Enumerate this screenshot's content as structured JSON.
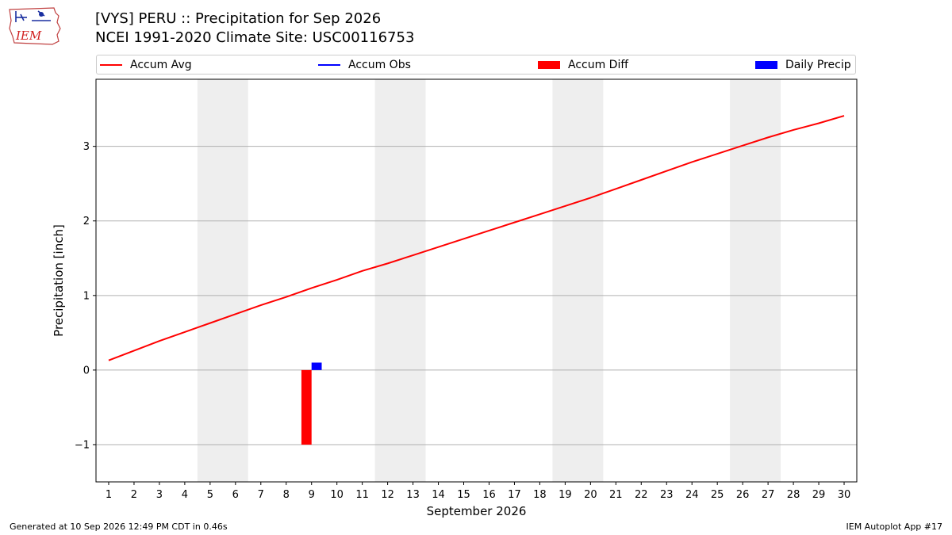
{
  "header": {
    "title_line1": "[VYS] PERU :: Precipitation for Sep 2026",
    "title_line2": "NCEI 1991-2020 Climate Site: USC00116753",
    "logo_text": "IEM"
  },
  "legend": {
    "placement": "top",
    "items": [
      {
        "label": "Accum Avg",
        "kind": "line",
        "color": "#ff0000"
      },
      {
        "label": "Accum Obs",
        "kind": "line",
        "color": "#0000ff"
      },
      {
        "label": "Accum Diff",
        "kind": "patch",
        "color": "#ff0000"
      },
      {
        "label": "Daily Precip",
        "kind": "patch",
        "color": "#0000ff"
      }
    ]
  },
  "footer": {
    "generated": "Generated at 10 Sep 2026 12:49 PM CDT in 0.46s",
    "app": "IEM Autoplot App #17"
  },
  "chart_data": {
    "type": "line",
    "xlabel": "September 2026",
    "ylabel": "Precipitation [inch]",
    "xlim": [
      0.5,
      30.5
    ],
    "ylim": [
      -1.5,
      3.9
    ],
    "yticks": [
      -1,
      0,
      1,
      2,
      3
    ],
    "ytick_labels": [
      "−1",
      "0",
      "1",
      "2",
      "3"
    ],
    "xticks": [
      1,
      2,
      3,
      4,
      5,
      6,
      7,
      8,
      9,
      10,
      11,
      12,
      13,
      14,
      15,
      16,
      17,
      18,
      19,
      20,
      21,
      22,
      23,
      24,
      25,
      26,
      27,
      28,
      29,
      30
    ],
    "grid": "y",
    "weekend_shading": [
      [
        4.5,
        6.5
      ],
      [
        11.5,
        13.5
      ],
      [
        18.5,
        20.5
      ],
      [
        25.5,
        27.5
      ]
    ],
    "weekend_color": "#eeeeee",
    "series": [
      {
        "name": "Accum Avg",
        "type": "line",
        "color": "#ff0000",
        "x": [
          1,
          2,
          3,
          4,
          5,
          6,
          7,
          8,
          9,
          10,
          11,
          12,
          13,
          14,
          15,
          16,
          17,
          18,
          19,
          20,
          21,
          22,
          23,
          24,
          25,
          26,
          27,
          28,
          29,
          30
        ],
        "values": [
          0.13,
          0.26,
          0.39,
          0.51,
          0.63,
          0.75,
          0.87,
          0.98,
          1.1,
          1.21,
          1.33,
          1.43,
          1.54,
          1.65,
          1.76,
          1.87,
          1.98,
          2.09,
          2.2,
          2.31,
          2.43,
          2.55,
          2.67,
          2.79,
          2.9,
          3.01,
          3.12,
          3.22,
          3.31,
          3.41
        ]
      },
      {
        "name": "Accum Diff",
        "type": "bar",
        "color": "#ff0000",
        "x": [
          8.8
        ],
        "values": [
          -1.0
        ],
        "width": 0.4
      },
      {
        "name": "Daily Precip",
        "type": "bar",
        "color": "#0000ff",
        "x": [
          9.2
        ],
        "values": [
          0.1
        ],
        "width": 0.4
      }
    ]
  }
}
